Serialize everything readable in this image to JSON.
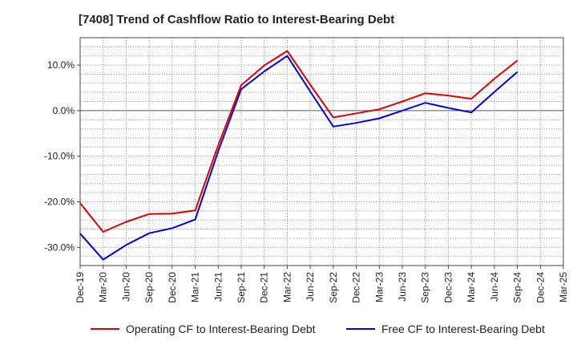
{
  "chart_data": {
    "type": "line",
    "title": "[7408]  Trend of Cashflow Ratio to Interest-Bearing Debt",
    "xlabel": "",
    "ylabel": "",
    "categories": [
      "Dec-19",
      "Mar-20",
      "Jun-20",
      "Sep-20",
      "Dec-20",
      "Mar-21",
      "Jun-21",
      "Sep-21",
      "Dec-21",
      "Mar-22",
      "Jun-22",
      "Sep-22",
      "Dec-22",
      "Mar-23",
      "Jun-23",
      "Sep-23",
      "Dec-23",
      "Mar-24",
      "Jun-24",
      "Sep-24",
      "Dec-24",
      "Mar-25"
    ],
    "ylim": [
      -34,
      16
    ],
    "yticks": [
      10,
      0,
      -10,
      -20,
      -30
    ],
    "ytick_labels": [
      "10.0%",
      "0.0%",
      "-10.0%",
      "-20.0%",
      "-30.0%"
    ],
    "grid": true,
    "legend_position": "bottom",
    "series": [
      {
        "name": "Operating CF to Interest-Bearing Debt",
        "color": "#e00000",
        "values": [
          -20.3,
          -26.6,
          -24.4,
          -22.7,
          -22.6,
          -21.9,
          -7.6,
          5.6,
          9.9,
          13.1,
          5.7,
          -1.5,
          -0.6,
          0.3,
          2.0,
          3.8,
          3.3,
          2.6,
          7.0,
          11.0,
          null,
          null
        ]
      },
      {
        "name": "Free CF to Interest-Bearing Debt",
        "color": "#0000e0",
        "values": [
          -27.0,
          -32.7,
          -29.5,
          -26.9,
          -25.8,
          -23.9,
          -8.9,
          4.7,
          8.6,
          12.0,
          4.2,
          -3.5,
          -2.7,
          -1.7,
          0.0,
          1.7,
          0.6,
          -0.4,
          4.1,
          8.5,
          null,
          null
        ]
      }
    ]
  }
}
